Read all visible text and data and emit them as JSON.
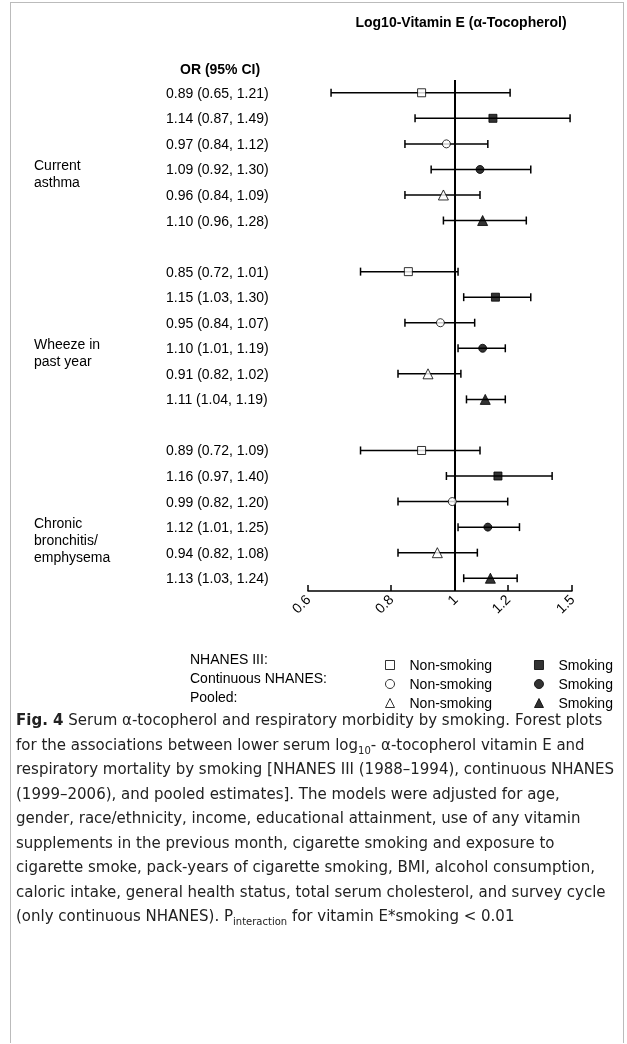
{
  "chart_data": {
    "type": "scatter",
    "orientation": "horizontal",
    "title": "Log10-Vitamin E (α-Tocopherol)",
    "ylabel": "OR (95% CI)",
    "categories": [
      "0.89 (0.65, 1.21)",
      "1.14 (0.87, 1.49)",
      "0.97 (0.84, 1.12)",
      "1.09 (0.92, 1.30)",
      "0.96 (0.84, 1.09)",
      "1.10 (0.96, 1.28)",
      null,
      "0.85 (0.72, 1.01)",
      "1.15 (1.03, 1.30)",
      "0.95 (0.84, 1.07)",
      "1.10 (1.01, 1.19)",
      "0.91 (0.82, 1.02)",
      "1.11 (1.04, 1.19)",
      null,
      "0.89 (0.72, 1.09)",
      "1.16 (0.97, 1.40)",
      "0.99 (0.82, 1.20)",
      "1.12 (1.01, 1.25)",
      "0.94 (0.82, 1.08)",
      "1.13 (1.03, 1.24)"
    ],
    "series": [
      {
        "name": "Non-smoking",
        "color": "#ffffff",
        "marker": "square",
        "values": [
          0.89,
          null,
          null,
          null,
          null,
          null,
          null,
          0.85,
          null,
          null,
          null,
          null,
          null,
          null,
          0.89,
          null,
          null,
          null,
          null,
          null
        ],
        "errors": [
          [
            0.65,
            1.21
          ],
          null,
          null,
          null,
          null,
          null,
          null,
          [
            0.72,
            1.01
          ],
          null,
          null,
          null,
          null,
          null,
          null,
          [
            0.72,
            1.09
          ],
          null,
          null,
          null,
          null,
          null
        ]
      },
      {
        "name": "Smoking",
        "color": "#000000",
        "marker": "square",
        "values": [
          null,
          1.14,
          null,
          null,
          null,
          null,
          null,
          null,
          1.15,
          null,
          null,
          null,
          null,
          null,
          null,
          1.16,
          null,
          null,
          null,
          null
        ],
        "errors": [
          null,
          [
            0.87,
            1.49
          ],
          null,
          null,
          null,
          null,
          null,
          null,
          [
            1.03,
            1.3
          ],
          null,
          null,
          null,
          null,
          null,
          null,
          [
            0.97,
            1.4
          ],
          null,
          null,
          null,
          null
        ]
      },
      {
        "name": "Non-smoking",
        "color": "#ffffff",
        "marker": "circle",
        "values": [
          null,
          null,
          0.97,
          null,
          null,
          null,
          null,
          null,
          null,
          0.95,
          null,
          null,
          null,
          null,
          null,
          null,
          0.99,
          null,
          null,
          null
        ],
        "errors": [
          null,
          null,
          [
            0.84,
            1.12
          ],
          null,
          null,
          null,
          null,
          null,
          null,
          [
            0.84,
            1.07
          ],
          null,
          null,
          null,
          null,
          null,
          null,
          [
            0.82,
            1.2
          ],
          null,
          null,
          null
        ]
      },
      {
        "name": "Smoking",
        "color": "#000000",
        "marker": "circle",
        "values": [
          null,
          null,
          null,
          1.09,
          null,
          null,
          null,
          null,
          null,
          null,
          1.1,
          null,
          null,
          null,
          null,
          null,
          null,
          1.12,
          null,
          null
        ],
        "errors": [
          null,
          null,
          null,
          [
            0.92,
            1.3
          ],
          null,
          null,
          null,
          null,
          null,
          null,
          [
            1.01,
            1.19
          ],
          null,
          null,
          null,
          null,
          null,
          null,
          [
            1.01,
            1.25
          ],
          null,
          null
        ]
      },
      {
        "name": "Non-smoking",
        "color": "#ffffff",
        "marker": "triangle",
        "values": [
          null,
          null,
          null,
          null,
          0.96,
          null,
          null,
          null,
          null,
          null,
          null,
          0.91,
          null,
          null,
          null,
          null,
          null,
          null,
          0.94,
          null
        ],
        "errors": [
          null,
          null,
          null,
          null,
          [
            0.84,
            1.09
          ],
          null,
          null,
          null,
          null,
          null,
          null,
          [
            0.82,
            1.02
          ],
          null,
          null,
          null,
          null,
          null,
          null,
          [
            0.82,
            1.08
          ],
          null
        ]
      },
      {
        "name": "Smoking",
        "color": "#000000",
        "marker": "triangle",
        "values": [
          null,
          null,
          null,
          null,
          null,
          1.1,
          null,
          null,
          null,
          null,
          null,
          null,
          1.11,
          null,
          null,
          null,
          null,
          null,
          null,
          1.13
        ],
        "errors": [
          null,
          null,
          null,
          null,
          null,
          [
            0.96,
            1.28
          ],
          null,
          null,
          null,
          null,
          null,
          null,
          [
            1.04,
            1.19
          ],
          null,
          null,
          null,
          null,
          null,
          null,
          [
            1.03,
            1.24
          ]
        ]
      }
    ],
    "xlim": [
      0.6,
      1.5
    ],
    "xticks": [
      0.6,
      0.8,
      1,
      1.2,
      1.5
    ],
    "log": "x",
    "ref_lines": [
      {
        "axis": "x",
        "value": 1
      }
    ],
    "legend": "bottom",
    "annotations": [
      "Current asthma",
      "Wheeze in past year",
      "Chronic bronchitis/ emphysema",
      "NHANES III:",
      "Continuous NHANES:",
      "Pooled:",
      "Fig. 4 Serum α-tocopherol and respiratory morbidity by smoking. Forest plots for the associations between lower serum log$_{10}$- α-tocopherol vitamin E and respiratory mortality by smoking [NHANES III (1988–1994), continuous NHANES (1999–2006), and pooled estimates]. The models were adjusted for age, gender, race/ethnicity, income, educational attainment, use of any vitamin supplements in the previous month, cigarette smoking and exposure to cigarette smoke, pack-years of cigarette smoking, BMI, alcohol consumption, caloric intake, general health status, total serum cholesterol, and survey cycle (only continuous NHANES). P$_{interaction}$ for vitamin E*smoking < 0.01"
    ]
  }
}
